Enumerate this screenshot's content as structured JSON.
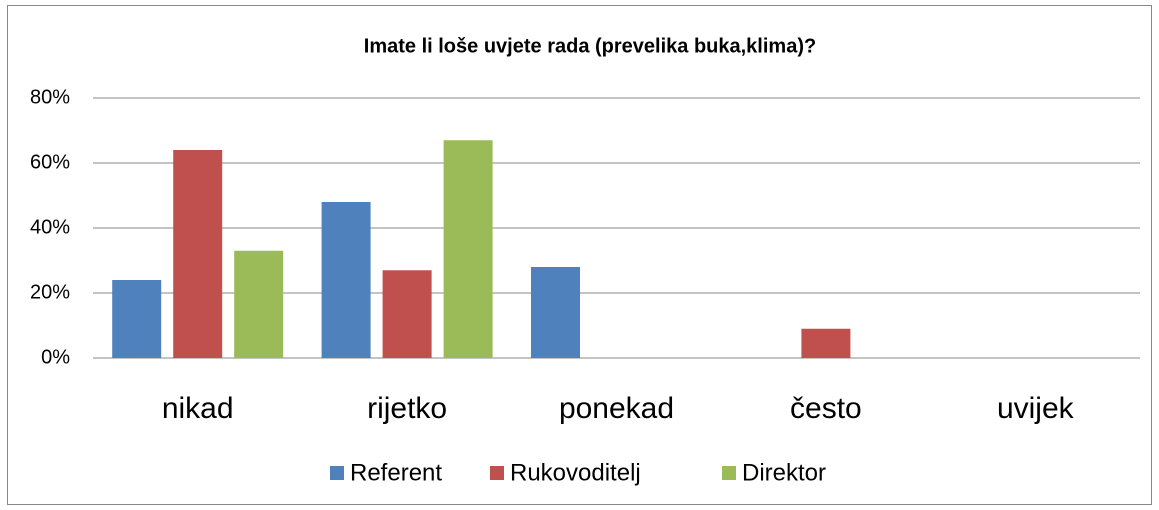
{
  "chart_data": {
    "type": "bar",
    "title": "Imate li loše uvjete rada (prevelika buka,klima)?",
    "categories": [
      "nikad",
      "rijetko",
      "ponekad",
      "često",
      "uvijek"
    ],
    "series": [
      {
        "name": "Referent",
        "color": "#4f81bd",
        "values": [
          24,
          48,
          28,
          0,
          0
        ]
      },
      {
        "name": "Rukovoditelj",
        "color": "#c0504d",
        "values": [
          64,
          27,
          0,
          9,
          0
        ]
      },
      {
        "name": "Direktor",
        "color": "#9bbb59",
        "values": [
          33,
          67,
          0,
          0,
          0
        ]
      }
    ],
    "ylim": [
      0,
      80
    ],
    "yticks": [
      {
        "value": 0,
        "label": "0%"
      },
      {
        "value": 20,
        "label": "20%"
      },
      {
        "value": 40,
        "label": "40%"
      },
      {
        "value": 60,
        "label": "60%"
      },
      {
        "value": 80,
        "label": "80%"
      }
    ],
    "grid": true,
    "legend": "bottom"
  }
}
